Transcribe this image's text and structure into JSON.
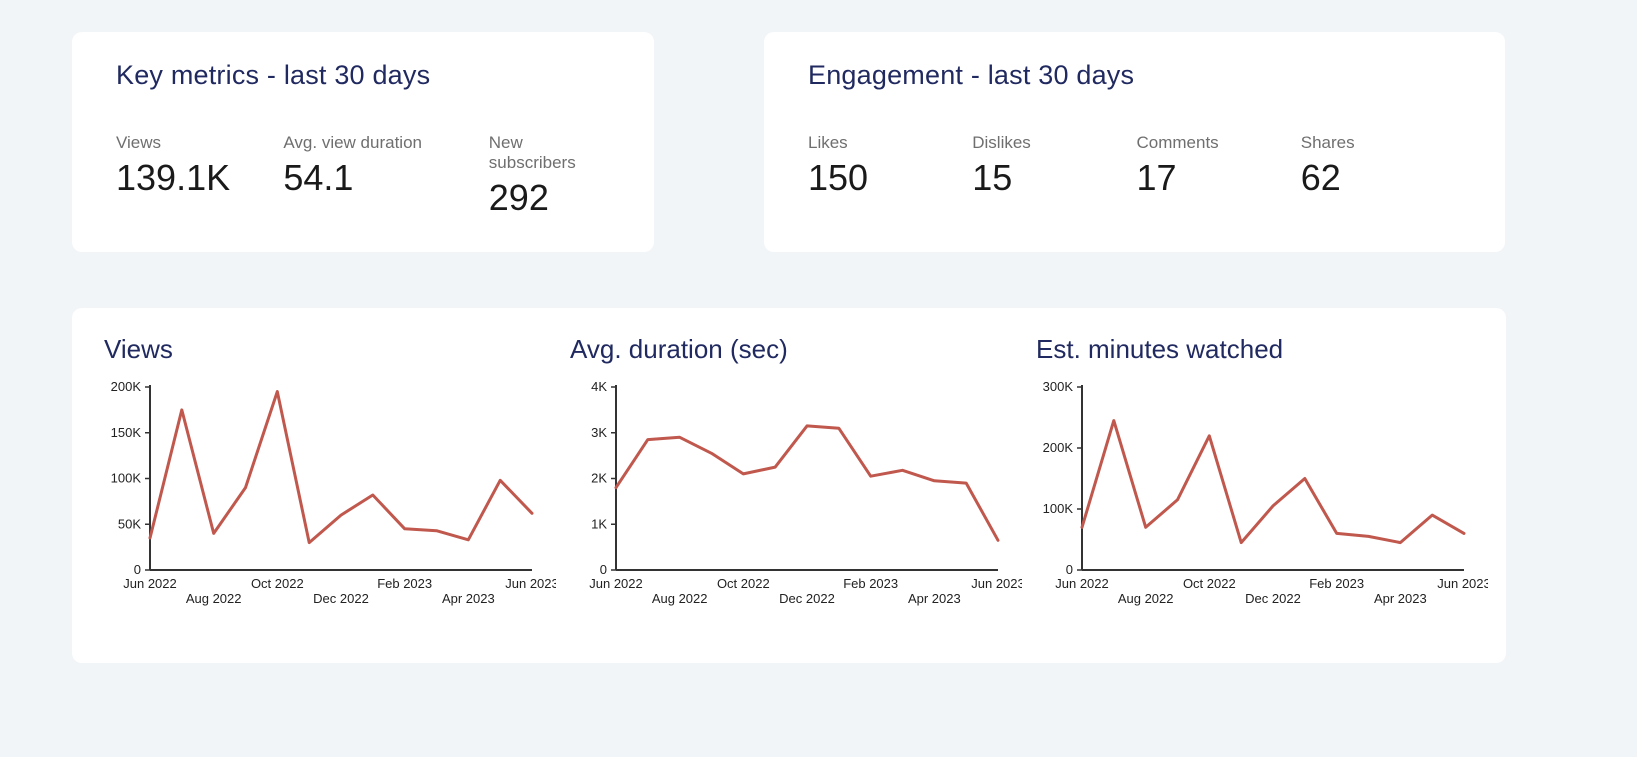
{
  "page": {
    "background": "#f2f5f8"
  },
  "colors": {
    "card_background": "#ffffff",
    "title_navy": "#212a60",
    "metric_label_gray": "#6f6f6f",
    "metric_value_black": "#1a1a1a",
    "axis_color": "#333333",
    "line_color": "#c0584d"
  },
  "summary_cards": [
    {
      "title": "Key metrics - last 30 days",
      "metrics": [
        {
          "label": "Views",
          "value": "139.1K"
        },
        {
          "label": "Avg. view duration",
          "value": "54.1"
        },
        {
          "label": "New subscribers",
          "value": "292"
        }
      ]
    },
    {
      "title": "Engagement - last 30 days",
      "metrics": [
        {
          "label": "Likes",
          "value": "150"
        },
        {
          "label": "Dislikes",
          "value": "15"
        },
        {
          "label": "Comments",
          "value": "17"
        },
        {
          "label": "Shares",
          "value": "62"
        }
      ]
    }
  ],
  "chart_data": [
    {
      "type": "line",
      "title": "Views",
      "x": [
        "Jun 2022",
        "Jul 2022",
        "Aug 2022",
        "Sep 2022",
        "Oct 2022",
        "Nov 2022",
        "Dec 2022",
        "Jan 2023",
        "Feb 2023",
        "Mar 2023",
        "Apr 2023",
        "May 2023",
        "Jun 2023"
      ],
      "values": [
        35000,
        175000,
        40000,
        90000,
        195000,
        30000,
        60000,
        82000,
        45000,
        43000,
        33000,
        98000,
        62000
      ],
      "ylim": [
        0,
        200000
      ],
      "yticks": [
        {
          "v": 0,
          "l": "0"
        },
        {
          "v": 50000,
          "l": "50K"
        },
        {
          "v": 100000,
          "l": "100K"
        },
        {
          "v": 150000,
          "l": "150K"
        },
        {
          "v": 200000,
          "l": "200K"
        }
      ],
      "xticks": [
        {
          "i": 0,
          "l": "Jun 2022"
        },
        {
          "i": 2,
          "l": "Aug 2022"
        },
        {
          "i": 4,
          "l": "Oct 2022"
        },
        {
          "i": 6,
          "l": "Dec 2022"
        },
        {
          "i": 8,
          "l": "Feb 2023"
        },
        {
          "i": 10,
          "l": "Apr 2023"
        },
        {
          "i": 12,
          "l": "Jun 2023"
        }
      ],
      "grid": false,
      "legend": "none",
      "line_color": "#c0584d"
    },
    {
      "type": "line",
      "title": "Avg. duration (sec)",
      "x": [
        "Jun 2022",
        "Jul 2022",
        "Aug 2022",
        "Sep 2022",
        "Oct 2022",
        "Nov 2022",
        "Dec 2022",
        "Jan 2023",
        "Feb 2023",
        "Mar 2023",
        "Apr 2023",
        "May 2023",
        "Jun 2023"
      ],
      "values": [
        1800,
        2850,
        2900,
        2550,
        2100,
        2250,
        3150,
        3100,
        2050,
        2180,
        1950,
        1900,
        650
      ],
      "ylim": [
        0,
        4000
      ],
      "yticks": [
        {
          "v": 0,
          "l": "0"
        },
        {
          "v": 1000,
          "l": "1K"
        },
        {
          "v": 2000,
          "l": "2K"
        },
        {
          "v": 3000,
          "l": "3K"
        },
        {
          "v": 4000,
          "l": "4K"
        }
      ],
      "xticks": [
        {
          "i": 0,
          "l": "Jun 2022"
        },
        {
          "i": 2,
          "l": "Aug 2022"
        },
        {
          "i": 4,
          "l": "Oct 2022"
        },
        {
          "i": 6,
          "l": "Dec 2022"
        },
        {
          "i": 8,
          "l": "Feb 2023"
        },
        {
          "i": 10,
          "l": "Apr 2023"
        },
        {
          "i": 12,
          "l": "Jun 2023"
        }
      ],
      "grid": false,
      "legend": "none",
      "line_color": "#c0584d"
    },
    {
      "type": "line",
      "title": "Est. minutes watched",
      "x": [
        "Jun 2022",
        "Jul 2022",
        "Aug 2022",
        "Sep 2022",
        "Oct 2022",
        "Nov 2022",
        "Dec 2022",
        "Jan 2023",
        "Feb 2023",
        "Mar 2023",
        "Apr 2023",
        "May 2023",
        "Jun 2023"
      ],
      "values": [
        70000,
        245000,
        70000,
        115000,
        220000,
        45000,
        105000,
        150000,
        60000,
        55000,
        45000,
        90000,
        60000
      ],
      "ylim": [
        0,
        300000
      ],
      "yticks": [
        {
          "v": 0,
          "l": "0"
        },
        {
          "v": 100000,
          "l": "100K"
        },
        {
          "v": 200000,
          "l": "200K"
        },
        {
          "v": 300000,
          "l": "300K"
        }
      ],
      "xticks": [
        {
          "i": 0,
          "l": "Jun 2022"
        },
        {
          "i": 2,
          "l": "Aug 2022"
        },
        {
          "i": 4,
          "l": "Oct 2022"
        },
        {
          "i": 6,
          "l": "Dec 2022"
        },
        {
          "i": 8,
          "l": "Feb 2023"
        },
        {
          "i": 10,
          "l": "Apr 2023"
        },
        {
          "i": 12,
          "l": "Jun 2023"
        }
      ],
      "grid": false,
      "legend": "none",
      "line_color": "#c0584d"
    }
  ]
}
